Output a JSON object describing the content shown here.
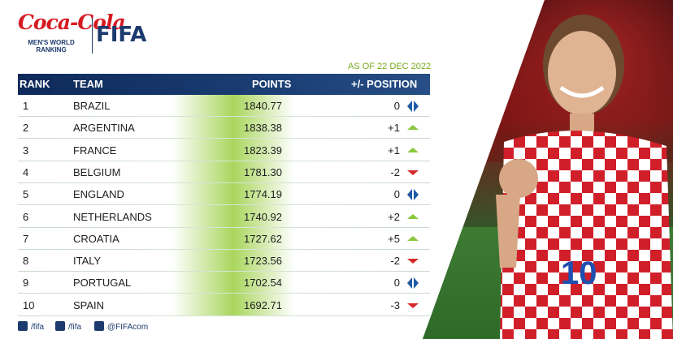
{
  "header": {
    "brand_script": "Coca-Cola",
    "subtitle_line1": "MEN'S WORLD",
    "subtitle_line2": "RANKING",
    "fifa": "FIFA"
  },
  "as_of": "AS OF 22 DEC 2022",
  "columns": {
    "rank": "RANK",
    "team": "TEAM",
    "points": "POINTS",
    "position": "+/- POSITION"
  },
  "rows": [
    {
      "rank": "1",
      "team": "BRAZIL",
      "points": "1840.77",
      "change": "0",
      "trend": "same"
    },
    {
      "rank": "2",
      "team": "ARGENTINA",
      "points": "1838.38",
      "change": "+1",
      "trend": "up"
    },
    {
      "rank": "3",
      "team": "FRANCE",
      "points": "1823.39",
      "change": "+1",
      "trend": "up"
    },
    {
      "rank": "4",
      "team": "BELGIUM",
      "points": "1781.30",
      "change": "-2",
      "trend": "down"
    },
    {
      "rank": "5",
      "team": "ENGLAND",
      "points": "1774.19",
      "change": "0",
      "trend": "same"
    },
    {
      "rank": "6",
      "team": "NETHERLANDS",
      "points": "1740.92",
      "change": "+2",
      "trend": "up"
    },
    {
      "rank": "7",
      "team": "CROATIA",
      "points": "1727.62",
      "change": "+5",
      "trend": "up"
    },
    {
      "rank": "8",
      "team": "ITALY",
      "points": "1723.56",
      "change": "-2",
      "trend": "down"
    },
    {
      "rank": "9",
      "team": "PORTUGAL",
      "points": "1702.54",
      "change": "0",
      "trend": "same"
    },
    {
      "rank": "10",
      "team": "SPAIN",
      "points": "1692.71",
      "change": "-3",
      "trend": "down"
    }
  ],
  "social": {
    "facebook": "/fifa",
    "instagram": "/fifa",
    "twitter": "@FIFAcom"
  },
  "colors": {
    "navy": "#1c3a6e",
    "up": "#8cc83f",
    "down": "#d42a2a",
    "same": "#1f5aa6"
  }
}
